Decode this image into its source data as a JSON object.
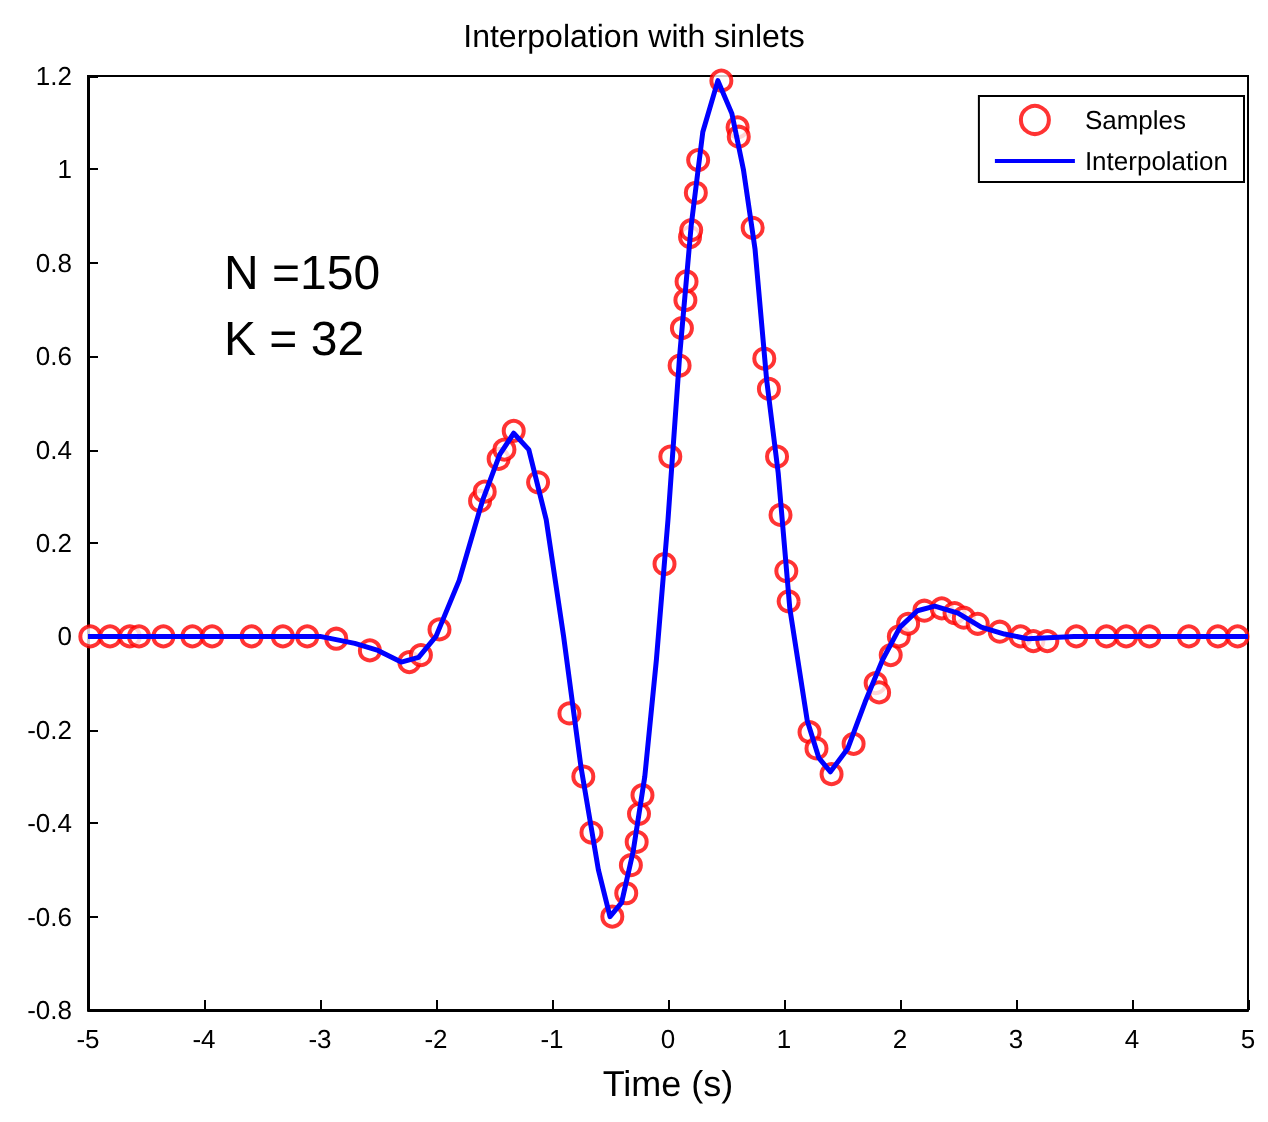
{
  "chart_data": {
    "type": "scatter",
    "title": "Interpolation with sinlets",
    "xlabel": "Time (s)",
    "xlim": [
      -5,
      5
    ],
    "xticks": [
      -5,
      -4,
      -3,
      -2,
      -1,
      0,
      1,
      2,
      3,
      4,
      5
    ],
    "ylim": [
      -0.8,
      1.2
    ],
    "yticks": [
      -0.8,
      -0.6,
      -0.4,
      -0.2,
      0,
      0.2,
      0.4,
      0.6,
      0.8,
      1,
      1.2
    ],
    "grid": false,
    "legend": "top right",
    "annotations": [
      "N =150",
      "K = 32"
    ],
    "series": [
      {
        "name": "Samples",
        "marker": "circle",
        "color": "#ff0000",
        "x": [
          -4.98,
          -4.81,
          -4.64,
          -4.56,
          -4.35,
          -4.1,
          -3.93,
          -3.59,
          -3.32,
          -3.11,
          -2.86,
          -2.57,
          -2.23,
          -2.13,
          -1.97,
          -1.62,
          -1.58,
          -1.46,
          -1.41,
          -1.33,
          -1.12,
          -0.85,
          -0.73,
          -0.66,
          -0.48,
          -0.36,
          -0.32,
          -0.27,
          -0.25,
          -0.22,
          -0.03,
          0.02,
          0.1,
          0.12,
          0.15,
          0.16,
          0.19,
          0.2,
          0.24,
          0.26,
          0.46,
          0.6,
          0.61,
          0.73,
          0.83,
          0.87,
          0.94,
          0.97,
          1.02,
          1.04,
          1.22,
          1.28,
          1.41,
          1.6,
          1.79,
          1.82,
          1.92,
          1.99,
          2.07,
          2.21,
          2.36,
          2.47,
          2.55,
          2.67,
          2.86,
          3.04,
          3.15,
          3.27,
          3.52,
          3.78,
          3.95,
          4.15,
          4.49,
          4.74,
          4.91
        ],
        "values": [
          0,
          0,
          0,
          0,
          0,
          0,
          0,
          0,
          0,
          0,
          -0.005,
          -0.03,
          -0.055,
          -0.04,
          0.015,
          0.29,
          0.31,
          0.38,
          0.4,
          0.44,
          0.33,
          -0.165,
          -0.3,
          -0.42,
          -0.6,
          -0.55,
          -0.49,
          -0.44,
          -0.38,
          -0.34,
          0.155,
          0.385,
          0.58,
          0.66,
          0.72,
          0.76,
          0.855,
          0.87,
          0.95,
          1.02,
          1.19,
          1.09,
          1.07,
          0.875,
          0.595,
          0.53,
          0.385,
          0.26,
          0.14,
          0.075,
          -0.205,
          -0.24,
          -0.295,
          -0.23,
          -0.1,
          -0.12,
          -0.04,
          0,
          0.027,
          0.055,
          0.06,
          0.05,
          0.04,
          0.027,
          0.01,
          0,
          -0.01,
          -0.01,
          0,
          0,
          0,
          0,
          0,
          0,
          0
        ]
      },
      {
        "name": "Interpolation",
        "type": "line",
        "marker": "none",
        "line_style": "solid",
        "color": "#0000ff",
        "x": [
          -5,
          -3,
          -2.7,
          -2.5,
          -2.3,
          -2.15,
          -2,
          -1.8,
          -1.6,
          -1.45,
          -1.33,
          -1.2,
          -1.05,
          -0.9,
          -0.75,
          -0.6,
          -0.5,
          -0.4,
          -0.3,
          -0.2,
          -0.1,
          0,
          0.1,
          0.2,
          0.3,
          0.43,
          0.55,
          0.65,
          0.75,
          0.85,
          0.95,
          1.05,
          1.2,
          1.3,
          1.4,
          1.55,
          1.7,
          1.85,
          2,
          2.15,
          2.3,
          2.5,
          2.7,
          2.9,
          3.1,
          3.5,
          5
        ],
        "values": [
          0,
          0,
          -0.015,
          -0.03,
          -0.055,
          -0.045,
          0,
          0.12,
          0.29,
          0.39,
          0.435,
          0.4,
          0.25,
          0,
          -0.28,
          -0.5,
          -0.6,
          -0.57,
          -0.46,
          -0.3,
          -0.05,
          0.25,
          0.6,
          0.88,
          1.08,
          1.19,
          1.12,
          1,
          0.83,
          0.55,
          0.35,
          0.06,
          -0.18,
          -0.26,
          -0.29,
          -0.24,
          -0.14,
          -0.05,
          0.02,
          0.055,
          0.065,
          0.05,
          0.02,
          0.005,
          -0.005,
          0,
          0
        ]
      }
    ]
  }
}
